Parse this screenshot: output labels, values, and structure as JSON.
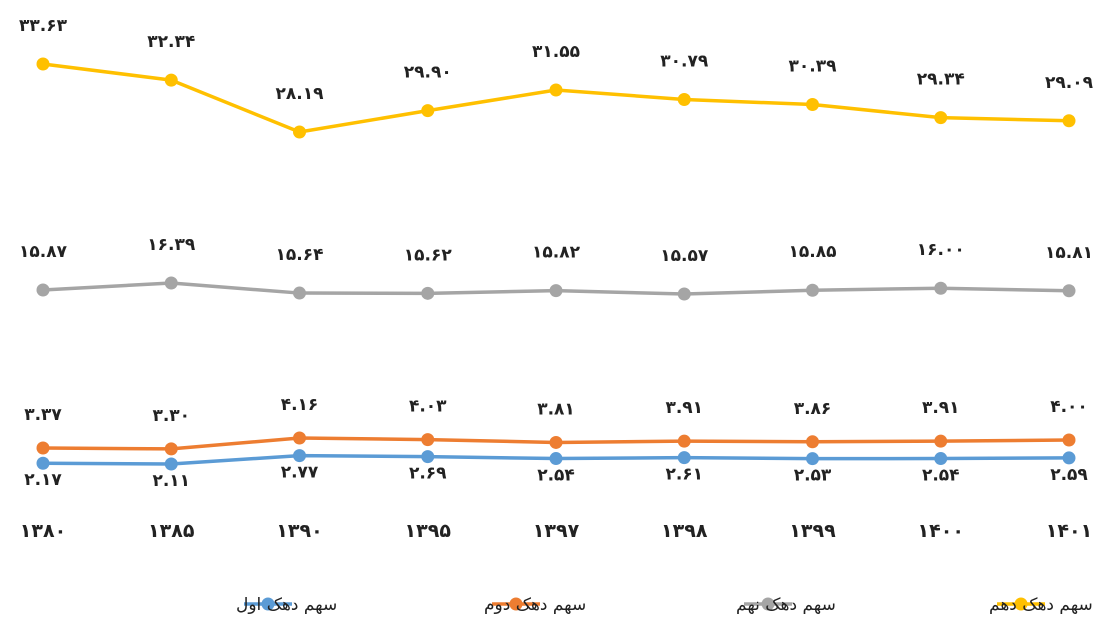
{
  "chart_data": {
    "type": "line",
    "categories": [
      "۱۳۸۰",
      "۱۳۸۵",
      "۱۳۹۰",
      "۱۳۹۵",
      "۱۳۹۷",
      "۱۳۹۸",
      "۱۳۹۹",
      "۱۴۰۰",
      "۱۴۰۱"
    ],
    "series": [
      {
        "name": "سهم دهک اول",
        "color": "#5b9bd5",
        "values": [
          2.17,
          2.11,
          2.77,
          2.69,
          2.54,
          2.61,
          2.53,
          2.54,
          2.59
        ],
        "labels": [
          "۲.۱۷",
          "۲.۱۱",
          "۲.۷۷",
          "۲.۶۹",
          "۲.۵۴",
          "۲.۶۱",
          "۲.۵۳",
          "۲.۵۴",
          "۲.۵۹"
        ]
      },
      {
        "name": "سهم دهک دوم",
        "color": "#ed7d31",
        "values": [
          3.37,
          3.3,
          4.16,
          4.03,
          3.81,
          3.91,
          3.86,
          3.91,
          4.0
        ],
        "labels": [
          "۳.۳۷",
          "۳.۳۰",
          "۴.۱۶",
          "۴.۰۳",
          "۳.۸۱",
          "۳.۹۱",
          "۳.۸۶",
          "۳.۹۱",
          "۴.۰۰"
        ]
      },
      {
        "name": "سهم دهک نهم",
        "color": "#a5a5a5",
        "values": [
          15.87,
          16.39,
          15.64,
          15.62,
          15.82,
          15.57,
          15.85,
          16.0,
          15.81
        ],
        "labels": [
          "۱۵.۸۷",
          "۱۶.۳۹",
          "۱۵.۶۴",
          "۱۵.۶۲",
          "۱۵.۸۲",
          "۱۵.۵۷",
          "۱۵.۸۵",
          "۱۶.۰۰",
          "۱۵.۸۱"
        ]
      },
      {
        "name": "سهم دهک دهم",
        "color": "#ffc000",
        "values": [
          33.63,
          32.34,
          28.19,
          29.9,
          31.55,
          30.79,
          30.39,
          29.34,
          29.09
        ],
        "labels": [
          "۳۳.۶۳",
          "۳۲.۳۴",
          "۲۸.۱۹",
          "۲۹.۹۰",
          "۳۱.۵۵",
          "۳۰.۷۹",
          "۳۰.۳۹",
          "۲۹.۳۴",
          "۲۹.۰۹"
        ]
      }
    ],
    "grid": false,
    "legend_position": "bottom",
    "xlabel": "",
    "ylabel": ""
  }
}
